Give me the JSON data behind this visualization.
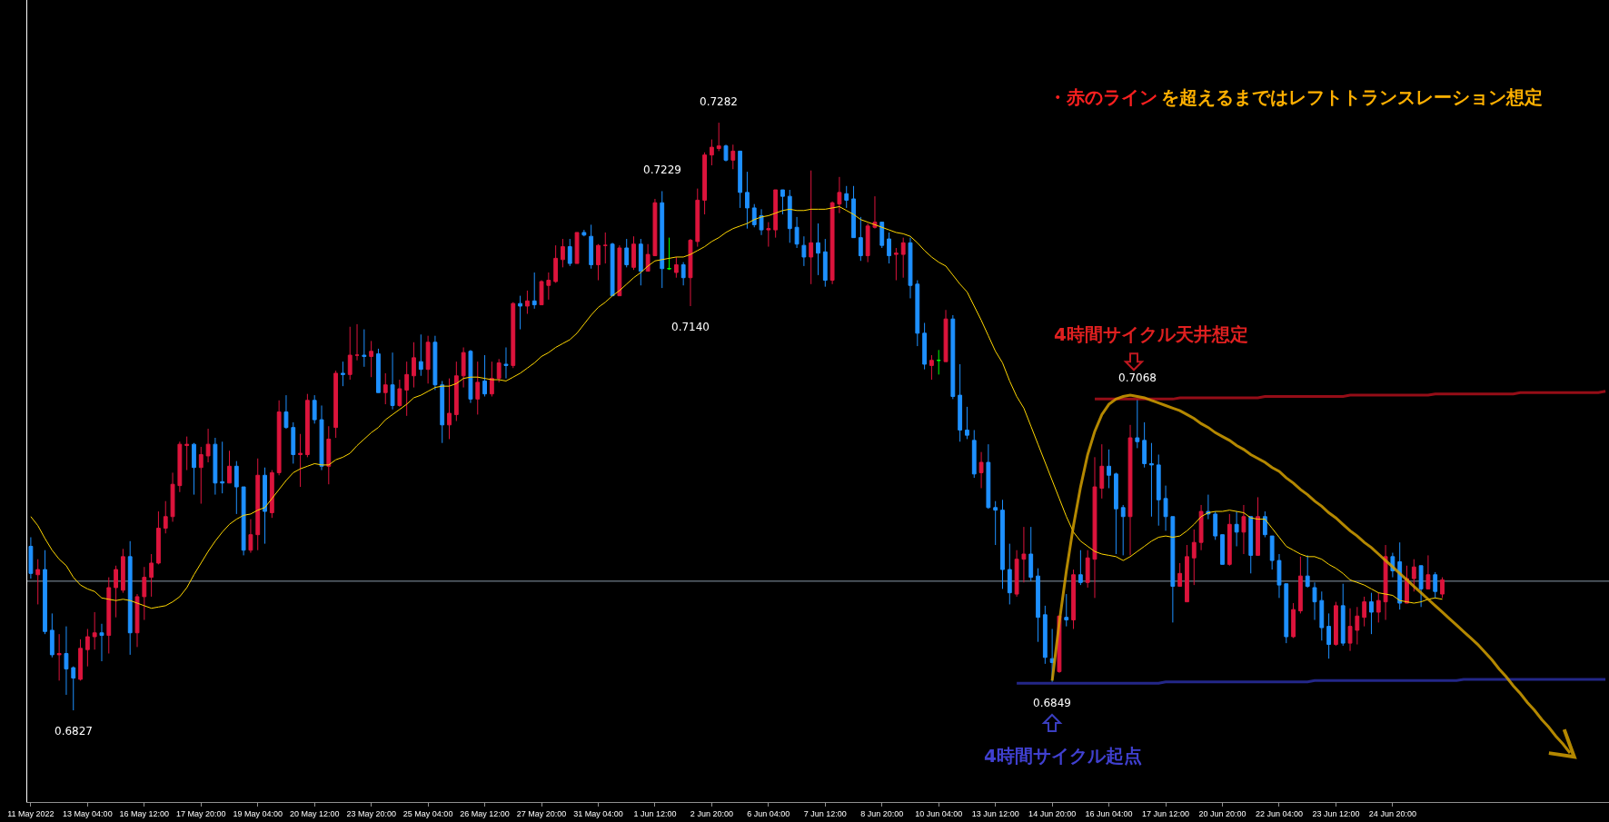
{
  "chart_data": {
    "type": "candlestick",
    "categories": [
      "11 May 2022",
      null,
      null,
      null,
      null,
      null,
      null,
      null,
      "13 May 04:00",
      null,
      null,
      null,
      null,
      null,
      null,
      null,
      "16 May 12:00",
      null,
      null,
      null,
      null,
      null,
      null,
      null,
      "17 May 20:00",
      null,
      null,
      null,
      null,
      null,
      null,
      null,
      "19 May 04:00",
      null,
      null,
      null,
      null,
      null,
      null,
      null,
      "20 May 12:00",
      null,
      null,
      null,
      null,
      null,
      null,
      null,
      "23 May 20:00",
      null,
      null,
      null,
      null,
      null,
      null,
      null,
      "25 May 04:00",
      null,
      null,
      null,
      null,
      null,
      null,
      null,
      "26 May 12:00",
      null,
      null,
      null,
      null,
      null,
      null,
      null,
      "27 May 20:00",
      null,
      null,
      null,
      null,
      null,
      null,
      null,
      "31 May 04:00",
      null,
      null,
      null,
      null,
      null,
      null,
      null,
      "1 Jun 12:00",
      null,
      null,
      null,
      null,
      null,
      null,
      null,
      "2 Jun 20:00",
      null,
      null,
      null,
      null,
      null,
      null,
      null,
      "6 Jun 04:00",
      null,
      null,
      null,
      null,
      null,
      null,
      null,
      "7 Jun 12:00",
      null,
      null,
      null,
      null,
      null,
      null,
      null,
      "8 Jun 20:00",
      null,
      null,
      null,
      null,
      null,
      null,
      null,
      "10 Jun 04:00",
      null,
      null,
      null,
      null,
      null,
      null,
      null,
      "13 Jun 12:00",
      null,
      null,
      null,
      null,
      null,
      null,
      null,
      "14 Jun 20:00",
      null,
      null,
      null,
      null,
      null,
      null,
      null,
      "16 Jun 04:00",
      null,
      null,
      null,
      null,
      null,
      null,
      null,
      "17 Jun 12:00",
      null,
      null,
      null,
      null,
      null,
      null,
      null,
      "20 Jun 20:00",
      null,
      null,
      null,
      null,
      null,
      null,
      null,
      "22 Jun 04:00",
      null,
      null,
      null,
      null,
      null,
      null,
      null,
      "23 Jun 12:00",
      null,
      null,
      null,
      null,
      null,
      null,
      null,
      "24 Jun 20:00",
      null,
      null,
      null,
      null,
      null,
      null,
      null,
      null,
      null,
      null,
      null,
      null,
      null,
      null,
      null,
      null,
      null,
      null,
      null,
      null,
      null,
      null,
      null,
      null,
      null,
      null,
      null,
      null,
      null,
      null
    ],
    "ohlc": [
      [
        0.6954,
        0.6961,
        0.6929,
        0.6933
      ],
      [
        0.6932,
        0.6944,
        0.6909,
        0.6936
      ],
      [
        0.6936,
        0.6951,
        0.6886,
        0.6888
      ],
      [
        0.6889,
        0.6902,
        0.6868,
        0.687
      ],
      [
        0.687,
        0.6886,
        0.685,
        0.6871
      ],
      [
        0.6871,
        0.6892,
        0.6839,
        0.6859
      ],
      [
        0.686,
        0.6861,
        0.6827,
        0.6852
      ],
      [
        0.6851,
        0.6882,
        0.685,
        0.6875
      ],
      [
        0.6874,
        0.689,
        0.6861,
        0.6884
      ],
      [
        0.6884,
        0.6903,
        0.6874,
        0.6887
      ],
      [
        0.6887,
        0.6894,
        0.6865,
        0.6885
      ],
      [
        0.6885,
        0.693,
        0.6871,
        0.6922
      ],
      [
        0.6922,
        0.6939,
        0.6899,
        0.6936
      ],
      [
        0.692,
        0.6952,
        0.6918,
        0.6946
      ],
      [
        0.6946,
        0.6958,
        0.687,
        0.6887
      ],
      [
        0.6887,
        0.6917,
        0.6876,
        0.6915
      ],
      [
        0.6915,
        0.6938,
        0.6897,
        0.693
      ],
      [
        0.693,
        0.6948,
        0.6915,
        0.6941
      ],
      [
        0.6941,
        0.6981,
        0.694,
        0.6968
      ],
      [
        0.6968,
        0.6989,
        0.6964,
        0.6977
      ],
      [
        0.6977,
        0.7011,
        0.6973,
        0.7002
      ],
      [
        0.7001,
        0.7035,
        0.6996,
        0.7033
      ],
      [
        0.7032,
        0.7039,
        0.7013,
        0.7033
      ],
      [
        0.7033,
        0.7034,
        0.6994,
        0.7015
      ],
      [
        0.7015,
        0.7031,
        0.6987,
        0.7025
      ],
      [
        0.7024,
        0.7045,
        0.7019,
        0.7033
      ],
      [
        0.7033,
        0.7038,
        0.6994,
        0.7003
      ],
      [
        0.7004,
        0.7035,
        0.6995,
        0.7003
      ],
      [
        0.7003,
        0.7028,
        0.7003,
        0.7016
      ],
      [
        0.7016,
        0.702,
        0.6979,
        0.7
      ],
      [
        0.7,
        0.7,
        0.6947,
        0.6951
      ],
      [
        0.6951,
        0.6975,
        0.6949,
        0.6963
      ],
      [
        0.6963,
        0.7022,
        0.6951,
        0.7009
      ],
      [
        0.7009,
        0.7015,
        0.6956,
        0.6981
      ],
      [
        0.698,
        0.7013,
        0.6976,
        0.7011
      ],
      [
        0.7011,
        0.7067,
        0.7009,
        0.7058
      ],
      [
        0.7058,
        0.7071,
        0.7045,
        0.7046
      ],
      [
        0.7046,
        0.705,
        0.7018,
        0.7025
      ],
      [
        0.7025,
        0.7041,
        0.7,
        0.7026
      ],
      [
        0.7025,
        0.7072,
        0.7023,
        0.7067
      ],
      [
        0.7067,
        0.7071,
        0.7049,
        0.7052
      ],
      [
        0.7052,
        0.7063,
        0.7013,
        0.7016
      ],
      [
        0.7016,
        0.7047,
        0.7002,
        0.7037
      ],
      [
        0.7046,
        0.709,
        0.7038,
        0.7088
      ],
      [
        0.7088,
        0.7097,
        0.7078,
        0.7087
      ],
      [
        0.7087,
        0.7124,
        0.7083,
        0.7102
      ],
      [
        0.7102,
        0.7126,
        0.7098,
        0.7102
      ],
      [
        0.7102,
        0.7122,
        0.7093,
        0.7101
      ],
      [
        0.7101,
        0.7113,
        0.7085,
        0.7105
      ],
      [
        0.7103,
        0.7107,
        0.7073,
        0.7073
      ],
      [
        0.7073,
        0.7088,
        0.7064,
        0.7079
      ],
      [
        0.7079,
        0.7104,
        0.706,
        0.7063
      ],
      [
        0.7063,
        0.7083,
        0.7062,
        0.7076
      ],
      [
        0.7075,
        0.7097,
        0.7055,
        0.7087
      ],
      [
        0.7086,
        0.7112,
        0.7077,
        0.71
      ],
      [
        0.7097,
        0.7118,
        0.7086,
        0.7091
      ],
      [
        0.7091,
        0.7117,
        0.708,
        0.7112
      ],
      [
        0.7112,
        0.7117,
        0.7075,
        0.7079
      ],
      [
        0.7079,
        0.7082,
        0.7034,
        0.7048
      ],
      [
        0.7048,
        0.7084,
        0.7037,
        0.7057
      ],
      [
        0.7056,
        0.7097,
        0.7051,
        0.7086
      ],
      [
        0.7086,
        0.7108,
        0.7077,
        0.7104
      ],
      [
        0.7105,
        0.7106,
        0.7065,
        0.7068
      ],
      [
        0.7068,
        0.7097,
        0.7056,
        0.7081
      ],
      [
        0.7082,
        0.7102,
        0.707,
        0.7072
      ],
      [
        0.7072,
        0.7097,
        0.707,
        0.7084
      ],
      [
        0.7084,
        0.7099,
        0.7081,
        0.7096
      ],
      [
        0.7095,
        0.7108,
        0.7084,
        0.7094
      ],
      [
        0.7094,
        0.7143,
        0.7092,
        0.7142
      ],
      [
        0.7142,
        0.7148,
        0.7122,
        0.714
      ],
      [
        0.714,
        0.7152,
        0.7134,
        0.7144
      ],
      [
        0.7144,
        0.7166,
        0.7138,
        0.7141
      ],
      [
        0.7141,
        0.716,
        0.7141,
        0.7159
      ],
      [
        0.7156,
        0.7166,
        0.7145,
        0.716
      ],
      [
        0.7159,
        0.7187,
        0.7158,
        0.7177
      ],
      [
        0.7176,
        0.7192,
        0.717,
        0.7186
      ],
      [
        0.7186,
        0.7192,
        0.7171,
        0.7173
      ],
      [
        0.7173,
        0.7197,
        0.7173,
        0.7197
      ],
      [
        0.7197,
        0.7199,
        0.7194,
        0.7195
      ],
      [
        0.7194,
        0.7203,
        0.7169,
        0.7172
      ],
      [
        0.7172,
        0.7188,
        0.716,
        0.7187
      ],
      [
        0.7187,
        0.7197,
        0.7173,
        0.7187
      ],
      [
        0.7188,
        0.7189,
        0.7148,
        0.7148
      ],
      [
        0.7148,
        0.7187,
        0.7148,
        0.7185
      ],
      [
        0.7185,
        0.7192,
        0.717,
        0.7172
      ],
      [
        0.717,
        0.7194,
        0.7168,
        0.7188
      ],
      [
        0.7188,
        0.7192,
        0.7156,
        0.7167
      ],
      [
        0.7167,
        0.7188,
        0.7167,
        0.718
      ],
      [
        0.7179,
        0.7223,
        0.7179,
        0.722
      ],
      [
        0.722,
        0.7229,
        0.7154,
        0.7169
      ],
      [
        0.7169,
        0.7193,
        0.7168,
        0.7169
      ],
      [
        0.7166,
        0.7178,
        0.7162,
        0.7172
      ],
      [
        0.7172,
        0.7174,
        0.7156,
        0.7162
      ],
      [
        0.7162,
        0.7192,
        0.714,
        0.7191
      ],
      [
        0.719,
        0.7231,
        0.7186,
        0.7222
      ],
      [
        0.7222,
        0.7259,
        0.7211,
        0.7257
      ],
      [
        0.7257,
        0.7269,
        0.7249,
        0.7263
      ],
      [
        0.7262,
        0.7282,
        0.726,
        0.7264
      ],
      [
        0.7264,
        0.7265,
        0.7252,
        0.7253
      ],
      [
        0.7253,
        0.7265,
        0.7246,
        0.726
      ],
      [
        0.726,
        0.726,
        0.7216,
        0.7228
      ],
      [
        0.7228,
        0.7244,
        0.72,
        0.7216
      ],
      [
        0.7216,
        0.7219,
        0.7201,
        0.7203
      ],
      [
        0.721,
        0.7215,
        0.7195,
        0.7199
      ],
      [
        0.7199,
        0.7205,
        0.7186,
        0.72
      ],
      [
        0.7199,
        0.723,
        0.7193,
        0.723
      ],
      [
        0.723,
        0.723,
        0.7211,
        0.7225
      ],
      [
        0.7225,
        0.723,
        0.7189,
        0.72
      ],
      [
        0.7201,
        0.7209,
        0.7185,
        0.7188
      ],
      [
        0.7187,
        0.7194,
        0.7171,
        0.7178
      ],
      [
        0.7178,
        0.7245,
        0.7157,
        0.7189
      ],
      [
        0.7189,
        0.7204,
        0.7164,
        0.7181
      ],
      [
        0.7182,
        0.7192,
        0.7155,
        0.716
      ],
      [
        0.716,
        0.7221,
        0.7157,
        0.722
      ],
      [
        0.7219,
        0.724,
        0.7212,
        0.7228
      ],
      [
        0.7227,
        0.7233,
        0.7216,
        0.7222
      ],
      [
        0.7223,
        0.7233,
        0.7193,
        0.7193
      ],
      [
        0.7193,
        0.7209,
        0.7175,
        0.7179
      ],
      [
        0.7179,
        0.7204,
        0.7174,
        0.7202
      ],
      [
        0.7201,
        0.7225,
        0.72,
        0.7205
      ],
      [
        0.7205,
        0.7205,
        0.7185,
        0.7187
      ],
      [
        0.7192,
        0.7197,
        0.7173,
        0.7179
      ],
      [
        0.718,
        0.7185,
        0.716,
        0.7181
      ],
      [
        0.718,
        0.7193,
        0.7162,
        0.7189
      ],
      [
        0.7189,
        0.7193,
        0.7146,
        0.7156
      ],
      [
        0.7157,
        0.716,
        0.7109,
        0.7119
      ],
      [
        0.7119,
        0.7127,
        0.7091,
        0.7095
      ],
      [
        0.7094,
        0.7102,
        0.7083,
        0.7098
      ],
      [
        0.7098,
        0.7106,
        0.7087,
        0.7098
      ],
      [
        0.7097,
        0.7137,
        0.7097,
        0.713
      ],
      [
        0.713,
        0.7133,
        0.7068,
        0.707
      ],
      [
        0.7071,
        0.7095,
        0.7035,
        0.7044
      ],
      [
        0.7044,
        0.7062,
        0.7037,
        0.704
      ],
      [
        0.7036,
        0.7044,
        0.7007,
        0.701
      ],
      [
        0.7011,
        0.7027,
        0.6999,
        0.7019
      ],
      [
        0.7019,
        0.7033,
        0.6983,
        0.6984
      ],
      [
        0.6984,
        0.6989,
        0.6955,
        0.6982
      ],
      [
        0.6982,
        0.699,
        0.6921,
        0.6936
      ],
      [
        0.6936,
        0.6956,
        0.6909,
        0.6918
      ],
      [
        0.6917,
        0.6951,
        0.6915,
        0.6944
      ],
      [
        0.6944,
        0.6969,
        0.6926,
        0.6948
      ],
      [
        0.6948,
        0.6969,
        0.6927,
        0.693
      ],
      [
        0.6931,
        0.6937,
        0.688,
        0.6899
      ],
      [
        0.6901,
        0.6908,
        0.6863,
        0.6868
      ],
      [
        0.6867,
        0.689,
        0.6849,
        0.6864
      ],
      [
        0.6857,
        0.69,
        0.6856,
        0.69
      ],
      [
        0.6899,
        0.6917,
        0.6892,
        0.6897
      ],
      [
        0.6897,
        0.6936,
        0.689,
        0.6932
      ],
      [
        0.6932,
        0.6951,
        0.6924,
        0.6926
      ],
      [
        0.6926,
        0.6951,
        0.6922,
        0.6945
      ],
      [
        0.6944,
        0.7023,
        0.6914,
        0.7
      ],
      [
        0.6999,
        0.7033,
        0.6991,
        0.7016
      ],
      [
        0.7016,
        0.7029,
        0.6999,
        0.7009
      ],
      [
        0.701,
        0.7011,
        0.6948,
        0.6983
      ],
      [
        0.6984,
        0.6986,
        0.6947,
        0.6977
      ],
      [
        0.6977,
        0.7048,
        0.6947,
        0.7038
      ],
      [
        0.7038,
        0.7068,
        0.703,
        0.7035
      ],
      [
        0.7036,
        0.705,
        0.7015,
        0.7018
      ],
      [
        0.7018,
        0.7034,
        0.6977,
        0.7017
      ],
      [
        0.7017,
        0.7025,
        0.697,
        0.699
      ],
      [
        0.6991,
        0.7001,
        0.6966,
        0.6977
      ],
      [
        0.6977,
        0.6977,
        0.6895,
        0.6923
      ],
      [
        0.6923,
        0.6941,
        0.6923,
        0.6933
      ],
      [
        0.6911,
        0.6955,
        0.6911,
        0.6946
      ],
      [
        0.6945,
        0.6967,
        0.6924,
        0.6957
      ],
      [
        0.6957,
        0.6986,
        0.6951,
        0.6981
      ],
      [
        0.6981,
        0.6994,
        0.6975,
        0.6979
      ],
      [
        0.6979,
        0.6981,
        0.6959,
        0.6962
      ],
      [
        0.6963,
        0.6963,
        0.694,
        0.694
      ],
      [
        0.694,
        0.6979,
        0.6939,
        0.6971
      ],
      [
        0.6971,
        0.6981,
        0.6954,
        0.6965
      ],
      [
        0.6965,
        0.6986,
        0.6948,
        0.6977
      ],
      [
        0.6977,
        0.6977,
        0.6933,
        0.6947
      ],
      [
        0.6947,
        0.6992,
        0.6947,
        0.6977
      ],
      [
        0.6977,
        0.6981,
        0.6961,
        0.6963
      ],
      [
        0.6962,
        0.6962,
        0.6936,
        0.6943
      ],
      [
        0.6943,
        0.6948,
        0.6914,
        0.6924
      ],
      [
        0.6925,
        0.6925,
        0.6879,
        0.6884
      ],
      [
        0.6884,
        0.691,
        0.6883,
        0.6905
      ],
      [
        0.6904,
        0.6946,
        0.6902,
        0.6931
      ],
      [
        0.6931,
        0.6947,
        0.6922,
        0.6923
      ],
      [
        0.6922,
        0.6926,
        0.6897,
        0.6911
      ],
      [
        0.6912,
        0.6919,
        0.6881,
        0.6891
      ],
      [
        0.6892,
        0.6902,
        0.6867,
        0.6878
      ],
      [
        0.6878,
        0.6911,
        0.6877,
        0.6908
      ],
      [
        0.6908,
        0.6925,
        0.6877,
        0.6879
      ],
      [
        0.6879,
        0.6906,
        0.6873,
        0.6892
      ],
      [
        0.6889,
        0.6907,
        0.6878,
        0.69
      ],
      [
        0.6899,
        0.6915,
        0.6892,
        0.6911
      ],
      [
        0.6911,
        0.6918,
        0.6886,
        0.6903
      ],
      [
        0.6903,
        0.6918,
        0.6895,
        0.6912
      ],
      [
        0.6911,
        0.6955,
        0.6897,
        0.6946
      ],
      [
        0.6946,
        0.6949,
        0.693,
        0.6935
      ],
      [
        0.6942,
        0.6957,
        0.6905,
        0.691
      ],
      [
        0.691,
        0.6939,
        0.691,
        0.6929
      ],
      [
        0.6929,
        0.6944,
        0.6919,
        0.6938
      ],
      [
        0.6939,
        0.6939,
        0.6907,
        0.6921
      ],
      [
        0.6921,
        0.6947,
        0.6921,
        0.6932
      ],
      [
        0.6932,
        0.6934,
        0.6914,
        0.6919
      ],
      [
        0.6917,
        0.693,
        0.6914,
        0.6928
      ],
      null,
      null,
      null,
      null,
      null,
      null,
      null,
      null,
      null,
      null,
      null,
      null,
      null,
      null,
      null,
      null,
      null,
      null,
      null,
      null,
      null,
      null,
      null
    ],
    "colors": [
      "#1e90ff",
      "#dc143c",
      "#1e90ff",
      "#1e90ff",
      "#dc143c",
      "#1e90ff",
      "#1e90ff",
      "#dc143c",
      "#dc143c",
      "#dc143c",
      "#1e90ff",
      "#dc143c",
      "#dc143c",
      "#dc143c",
      "#1e90ff",
      "#dc143c",
      "#dc143c",
      "#dc143c",
      "#dc143c",
      "#dc143c",
      "#dc143c",
      "#dc143c",
      "#dc143c",
      "#1e90ff",
      "#dc143c",
      "#dc143c",
      "#1e90ff",
      "#1e90ff",
      "#dc143c",
      "#1e90ff",
      "#1e90ff",
      "#dc143c",
      "#dc143c",
      "#1e90ff",
      "#dc143c",
      "#dc143c",
      "#1e90ff",
      "#1e90ff",
      "#dc143c",
      "#dc143c",
      "#1e90ff",
      "#1e90ff",
      "#dc143c",
      "#dc143c",
      "#1e90ff",
      "#dc143c",
      "#dc143c",
      "#1e90ff",
      "#dc143c",
      "#1e90ff",
      "#dc143c",
      "#1e90ff",
      "#dc143c",
      "#dc143c",
      "#dc143c",
      "#1e90ff",
      "#dc143c",
      "#1e90ff",
      "#1e90ff",
      "#dc143c",
      "#dc143c",
      "#dc143c",
      "#1e90ff",
      "#dc143c",
      "#1e90ff",
      "#dc143c",
      "#dc143c",
      "#1e90ff",
      "#dc143c",
      "#1e90ff",
      "#dc143c",
      "#1e90ff",
      "#dc143c",
      "#dc143c",
      "#dc143c",
      "#dc143c",
      "#1e90ff",
      "#dc143c",
      "#1e90ff",
      "#1e90ff",
      "#dc143c",
      "#dc143c",
      "#1e90ff",
      "#dc143c",
      "#1e90ff",
      "#dc143c",
      "#1e90ff",
      "#dc143c",
      "#dc143c",
      "#1e90ff",
      "#00ff00",
      "#dc143c",
      "#1e90ff",
      "#dc143c",
      "#dc143c",
      "#dc143c",
      "#dc143c",
      "#dc143c",
      "#1e90ff",
      "#dc143c",
      "#1e90ff",
      "#1e90ff",
      "#1e90ff",
      "#1e90ff",
      "#dc143c",
      "#dc143c",
      "#1e90ff",
      "#1e90ff",
      "#1e90ff",
      "#1e90ff",
      "#dc143c",
      "#1e90ff",
      "#1e90ff",
      "#dc143c",
      "#dc143c",
      "#1e90ff",
      "#1e90ff",
      "#1e90ff",
      "#dc143c",
      "#dc143c",
      "#1e90ff",
      "#1e90ff",
      "#dc143c",
      "#dc143c",
      "#1e90ff",
      "#1e90ff",
      "#1e90ff",
      "#dc143c",
      "#00ff00",
      "#dc143c",
      "#1e90ff",
      "#1e90ff",
      "#1e90ff",
      "#1e90ff",
      "#dc143c",
      "#1e90ff",
      "#1e90ff",
      "#1e90ff",
      "#1e90ff",
      "#dc143c",
      "#dc143c",
      "#1e90ff",
      "#1e90ff",
      "#1e90ff",
      "#1e90ff",
      "#dc143c",
      "#1e90ff",
      "#dc143c",
      "#1e90ff",
      "#dc143c",
      "#dc143c",
      "#dc143c",
      "#1e90ff",
      "#1e90ff",
      "#1e90ff",
      "#dc143c",
      "#1e90ff",
      "#1e90ff",
      "#1e90ff",
      "#1e90ff",
      "#1e90ff",
      "#1e90ff",
      "#dc143c",
      "#dc143c",
      "#dc143c",
      "#dc143c",
      "#1e90ff",
      "#1e90ff",
      "#1e90ff",
      "#dc143c",
      "#1e90ff",
      "#dc143c",
      "#1e90ff",
      "#dc143c",
      "#1e90ff",
      "#1e90ff",
      "#1e90ff",
      "#1e90ff",
      "#dc143c",
      "#dc143c",
      "#1e90ff",
      "#1e90ff",
      "#1e90ff",
      "#1e90ff",
      "#dc143c",
      "#1e90ff",
      "#dc143c",
      "#dc143c",
      "#dc143c",
      "#1e90ff",
      "#dc143c",
      "#dc143c",
      "#1e90ff",
      "#1e90ff",
      "#dc143c",
      "#dc143c",
      "#1e90ff",
      "#dc143c",
      "#1e90ff",
      "#dc143c",
      null,
      null,
      null,
      null,
      null,
      null,
      null,
      null,
      null,
      null,
      null,
      null,
      null,
      null,
      null,
      null,
      null,
      null,
      null,
      null,
      null,
      null,
      null
    ],
    "series": [
      {
        "type": "line",
        "color": "#ffd700",
        "values": [
          0.6977,
          0.697,
          0.696,
          0.6951,
          0.6944,
          0.6939,
          0.693,
          0.6924,
          0.6921,
          0.6919,
          0.6914,
          0.6913,
          0.6912,
          0.6913,
          0.6912,
          0.691,
          0.6908,
          0.6906,
          0.6907,
          0.6908,
          0.6911,
          0.6915,
          0.6922,
          0.6932,
          0.6941,
          0.695,
          0.6958,
          0.6965,
          0.6971,
          0.6975,
          0.6978,
          0.6979,
          0.6982,
          0.6984,
          0.6991,
          0.6998,
          0.7005,
          0.7011,
          0.7014,
          0.7016,
          0.7018,
          0.7017,
          0.7017,
          0.7021,
          0.7023,
          0.7026,
          0.7032,
          0.7037,
          0.7042,
          0.7046,
          0.7052,
          0.7056,
          0.706,
          0.7064,
          0.7069,
          0.7071,
          0.7074,
          0.7077,
          0.7078,
          0.7078,
          0.708,
          0.7084,
          0.7085,
          0.7085,
          0.7084,
          0.7083,
          0.7083,
          0.7082,
          0.7085,
          0.7088,
          0.7092,
          0.7096,
          0.7101,
          0.7104,
          0.7108,
          0.7111,
          0.7114,
          0.7119,
          0.7126,
          0.7133,
          0.7139,
          0.7143,
          0.7148,
          0.7152,
          0.7157,
          0.7162,
          0.7166,
          0.7171,
          0.7175,
          0.7176,
          0.7177,
          0.7178,
          0.7178,
          0.718,
          0.7183,
          0.7186,
          0.719,
          0.7193,
          0.7197,
          0.72,
          0.7202,
          0.7204,
          0.7207,
          0.7209,
          0.721,
          0.7212,
          0.7214,
          0.7215,
          0.7214,
          0.7214,
          0.7215,
          0.7215,
          0.7215,
          0.7216,
          0.7217,
          0.7214,
          0.7211,
          0.7207,
          0.7205,
          0.7203,
          0.7201,
          0.7199,
          0.7197,
          0.7196,
          0.7194,
          0.7189,
          0.7183,
          0.7178,
          0.7174,
          0.7171,
          0.7164,
          0.7157,
          0.7151,
          0.714,
          0.7129,
          0.7117,
          0.7105,
          0.7096,
          0.7082,
          0.707,
          0.7061,
          0.7047,
          0.7033,
          0.7019,
          0.7005,
          0.6991,
          0.6977,
          0.6965,
          0.6958,
          0.6954,
          0.695,
          0.6948,
          0.6947,
          0.6946,
          0.6943,
          0.6946,
          0.695,
          0.6954,
          0.6958,
          0.6961,
          0.6962,
          0.6961,
          0.6962,
          0.6966,
          0.6971,
          0.6977,
          0.698,
          0.6981,
          0.6981,
          0.6982,
          0.6981,
          0.698,
          0.6976,
          0.6975,
          0.6975,
          0.6968,
          0.6961,
          0.6954,
          0.6951,
          0.6948,
          0.6946,
          0.6946,
          0.6944,
          0.694,
          0.6937,
          0.6933,
          0.6928,
          0.6926,
          0.6924,
          0.6921,
          0.6918,
          0.6917,
          0.6916,
          0.6912,
          0.6911,
          0.691,
          0.6911,
          0.6913,
          0.6914,
          0.6913,
          null,
          null,
          null,
          null,
          null,
          null,
          null,
          null,
          null,
          null,
          null,
          null,
          null,
          null,
          null,
          null,
          null,
          null,
          null,
          null,
          null,
          null,
          null
        ]
      },
      {
        "type": "line",
        "color": "#b0101c",
        "values": [
          null,
          null,
          null,
          null,
          null,
          null,
          null,
          null,
          null,
          null,
          null,
          null,
          null,
          null,
          null,
          null,
          null,
          null,
          null,
          null,
          null,
          null,
          null,
          null,
          null,
          null,
          null,
          null,
          null,
          null,
          null,
          null,
          null,
          null,
          null,
          null,
          null,
          null,
          null,
          null,
          null,
          null,
          null,
          null,
          null,
          null,
          null,
          null,
          null,
          null,
          null,
          null,
          null,
          null,
          null,
          null,
          null,
          null,
          null,
          null,
          null,
          null,
          null,
          null,
          null,
          null,
          null,
          null,
          null,
          null,
          null,
          null,
          null,
          null,
          null,
          null,
          null,
          null,
          null,
          null,
          null,
          null,
          null,
          null,
          null,
          null,
          null,
          null,
          null,
          null,
          null,
          null,
          null,
          null,
          null,
          null,
          null,
          null,
          null,
          null,
          null,
          null,
          null,
          null,
          null,
          null,
          null,
          null,
          null,
          null,
          null,
          null,
          null,
          null,
          null,
          null,
          null,
          null,
          null,
          null,
          null,
          null,
          null,
          null,
          null,
          null,
          null,
          null,
          null,
          null,
          null,
          null,
          null,
          null,
          null,
          null,
          null,
          null,
          null,
          null,
          null,
          null,
          null,
          null,
          null,
          null,
          null,
          null,
          null,
          null,
          0.7068,
          0.7068,
          0.7068,
          0.7068,
          0.7068,
          0.7068,
          0.7068,
          0.7068,
          0.7068,
          0.7068,
          0.7068,
          0.7068,
          0.7069,
          0.7069,
          0.7069,
          0.7069,
          0.7069,
          0.7069,
          0.7069,
          0.7069,
          0.7069,
          0.7069,
          0.7069,
          0.7069,
          0.707,
          0.707,
          0.707,
          0.707,
          0.707,
          0.707,
          0.707,
          0.707,
          0.707,
          0.707,
          0.707,
          0.707,
          0.7071,
          0.7071,
          0.7071,
          0.7071,
          0.7071,
          0.7071,
          0.7071,
          0.7071,
          0.7071,
          0.7071,
          0.7071,
          0.7071,
          0.7072,
          0.7072,
          0.7072,
          0.7072,
          0.7072,
          0.7072,
          0.7072,
          0.7072,
          0.7072,
          0.7072,
          0.7072,
          0.7072,
          0.7073,
          0.7073,
          0.7073,
          0.7073,
          0.7073,
          0.7073,
          0.7073,
          0.7073,
          0.7073,
          0.7073,
          0.7073,
          0.7073,
          0.7074
        ]
      },
      {
        "type": "line",
        "color": "#2a2ea0",
        "values": [
          null,
          null,
          null,
          null,
          null,
          null,
          null,
          null,
          null,
          null,
          null,
          null,
          null,
          null,
          null,
          null,
          null,
          null,
          null,
          null,
          null,
          null,
          null,
          null,
          null,
          null,
          null,
          null,
          null,
          null,
          null,
          null,
          null,
          null,
          null,
          null,
          null,
          null,
          null,
          null,
          null,
          null,
          null,
          null,
          null,
          null,
          null,
          null,
          null,
          null,
          null,
          null,
          null,
          null,
          null,
          null,
          null,
          null,
          null,
          null,
          null,
          null,
          null,
          null,
          null,
          null,
          null,
          null,
          null,
          null,
          null,
          null,
          null,
          null,
          null,
          null,
          null,
          null,
          null,
          null,
          null,
          null,
          null,
          null,
          null,
          null,
          null,
          null,
          null,
          null,
          null,
          null,
          null,
          null,
          null,
          null,
          null,
          null,
          null,
          null,
          null,
          null,
          null,
          null,
          null,
          null,
          null,
          null,
          null,
          null,
          null,
          null,
          null,
          null,
          null,
          null,
          null,
          null,
          null,
          null,
          null,
          null,
          null,
          null,
          null,
          null,
          null,
          null,
          null,
          null,
          null,
          null,
          null,
          null,
          null,
          null,
          null,
          null,
          null,
          0.6848,
          0.6848,
          0.6848,
          0.6848,
          0.6848,
          0.6848,
          0.6848,
          0.6848,
          0.6848,
          0.6848,
          0.6848,
          0.6848,
          0.6848,
          0.6848,
          0.6848,
          0.6848,
          0.6848,
          0.6848,
          0.6848,
          0.6848,
          0.6848,
          0.6849,
          0.6849,
          0.6849,
          0.6849,
          0.6849,
          0.6849,
          0.6849,
          0.6849,
          0.6849,
          0.6849,
          0.6849,
          0.6849,
          0.6849,
          0.6849,
          0.6849,
          0.6849,
          0.6849,
          0.6849,
          0.6849,
          0.6849,
          0.6849,
          0.685,
          0.685,
          0.685,
          0.685,
          0.685,
          0.685,
          0.685,
          0.685,
          0.685,
          0.685,
          0.685,
          0.685,
          0.685,
          0.685,
          0.685,
          0.685,
          0.685,
          0.685,
          0.685,
          0.685,
          0.685,
          0.6851,
          0.6851,
          0.6851,
          0.6851,
          0.6851,
          0.6851,
          0.6851,
          0.6851,
          0.6851,
          0.6851,
          0.6851,
          0.6851,
          0.6851,
          0.6851,
          0.6851,
          0.6851,
          0.6851,
          0.6851,
          0.6851,
          0.6851,
          0.6851
        ]
      },
      {
        "type": "line",
        "color": "#d4a000",
        "values": [
          null,
          null,
          null,
          null,
          null,
          null,
          null,
          null,
          null,
          null,
          null,
          null,
          null,
          null,
          null,
          null,
          null,
          null,
          null,
          null,
          null,
          null,
          null,
          null,
          null,
          null,
          null,
          null,
          null,
          null,
          null,
          null,
          null,
          null,
          null,
          null,
          null,
          null,
          null,
          null,
          null,
          null,
          null,
          null,
          null,
          null,
          null,
          null,
          null,
          null,
          null,
          null,
          null,
          null,
          null,
          null,
          null,
          null,
          null,
          null,
          null,
          null,
          null,
          null,
          null,
          null,
          null,
          null,
          null,
          null,
          null,
          null,
          null,
          null,
          null,
          null,
          null,
          null,
          null,
          null,
          null,
          null,
          null,
          null,
          null,
          null,
          null,
          null,
          null,
          null,
          null,
          null,
          null,
          null,
          null,
          null,
          null,
          null,
          null,
          null,
          null,
          null,
          null,
          null,
          null,
          null,
          null,
          null,
          null,
          null,
          null,
          null,
          null,
          null,
          null,
          null,
          null,
          null,
          null,
          null,
          null,
          null,
          null,
          null,
          null,
          null,
          null,
          null,
          null,
          null,
          null,
          null,
          null,
          null,
          null,
          null,
          null,
          null,
          null,
          null,
          null,
          null,
          null,
          null,
          0.685,
          0.6895,
          0.6935,
          0.697,
          0.7,
          0.7025,
          0.7043,
          0.7056,
          0.7064,
          0.7068,
          0.707,
          0.7071,
          0.707,
          0.7069,
          0.7067,
          0.7065,
          0.7063,
          0.7061,
          0.7059,
          0.7056,
          0.7053,
          0.7049,
          0.7046,
          0.7042,
          0.7039,
          0.7036,
          0.7032,
          0.7029,
          0.7025,
          0.7022,
          0.7019,
          0.7015,
          0.7012,
          0.7007,
          0.7003,
          0.6998,
          0.6994,
          0.6989,
          0.6985,
          0.698,
          0.6976,
          0.6971,
          0.6966,
          0.6962,
          0.6957,
          0.6953,
          0.6948,
          0.6943,
          0.6938,
          0.6933,
          0.6928,
          0.6923,
          0.6918,
          0.6913,
          0.6908,
          0.6903,
          0.6898,
          0.6893,
          0.6888,
          0.6883,
          0.6878,
          0.6872,
          0.6866,
          0.6859,
          0.6853,
          0.6846,
          0.684,
          0.6833,
          0.6827,
          0.682,
          0.6814,
          0.6807,
          0.6801,
          0.6794,
          null,
          null,
          null,
          null,
          null
        ]
      }
    ],
    "ylim": [
      0.6756,
      0.7377
    ],
    "tick_labels": "x",
    "ref_lines": [
      {
        "axis": "y",
        "value": 0.6927,
        "color": "#8899aa"
      }
    ],
    "annotations": [
      {
        "text": "0.7282",
        "y": 0.7282
      },
      {
        "text": "0.7229",
        "y": 0.7229
      },
      {
        "text": "0.7140",
        "y": 0.714
      },
      {
        "text": "0.7068",
        "y": 0.7068
      },
      {
        "text": "0.6849",
        "y": 0.6849
      },
      {
        "text": "0.6827",
        "y": 0.6827
      },
      "・赤のライン",
      "を超えるまではレフトトランスレーション想定",
      "4時間サイクル天井想定",
      "4時間サイクル起点"
    ]
  }
}
